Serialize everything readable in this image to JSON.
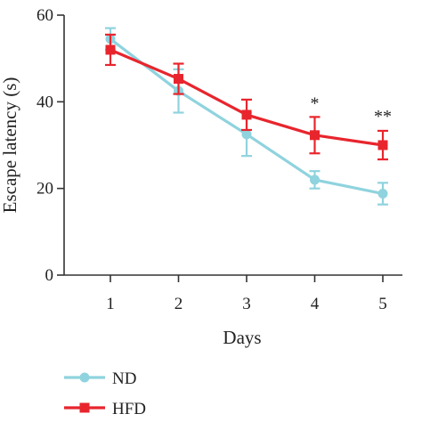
{
  "chart_data": {
    "type": "line",
    "xlabel": "Days",
    "ylabel": "Escape latency (s)",
    "x": [
      1,
      2,
      3,
      4,
      5
    ],
    "xlim": [
      0.35,
      5.5
    ],
    "ylim": [
      0,
      60
    ],
    "yticks": [
      0,
      20,
      40,
      60
    ],
    "xticks": [
      1,
      2,
      3,
      4,
      5
    ],
    "grid": false,
    "legend_position": "bottom-left",
    "series": [
      {
        "name": "ND",
        "color": "#8fd3de",
        "marker": "circle",
        "values": [
          54.5,
          42.5,
          32.5,
          22,
          18.8
        ],
        "errors": [
          2.5,
          5,
          5,
          2,
          2.5
        ]
      },
      {
        "name": "HFD",
        "color": "#e8252d",
        "marker": "square",
        "values": [
          52,
          45.3,
          37,
          32.3,
          30
        ],
        "errors": [
          3.5,
          3.5,
          3.5,
          4.2,
          3.3
        ]
      }
    ],
    "annotations": [
      {
        "x": 4,
        "y": 40,
        "text": "*"
      },
      {
        "x": 5,
        "y": 37,
        "text": "**"
      }
    ]
  }
}
